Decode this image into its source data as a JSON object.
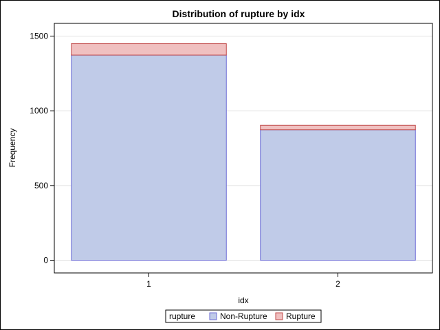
{
  "chart_data": {
    "type": "bar",
    "stacked": true,
    "title": "Distribution of rupture by idx",
    "xlabel": "idx",
    "ylabel": "Frequency",
    "categories": [
      "1",
      "2"
    ],
    "series": [
      {
        "name": "Non-Rupture",
        "values": [
          1373,
          873
        ],
        "fill": "#c0cbe8",
        "stroke": "#6b6bd6"
      },
      {
        "name": "Rupture",
        "values": [
          76,
          30
        ],
        "fill": "#f0c0c0",
        "stroke": "#c04848"
      }
    ],
    "ylim": [
      -85,
      1585
    ],
    "yticks": [
      0,
      500,
      1000,
      1500
    ],
    "grid": true,
    "legend": {
      "title": "rupture",
      "placement": "bottom-center"
    }
  }
}
